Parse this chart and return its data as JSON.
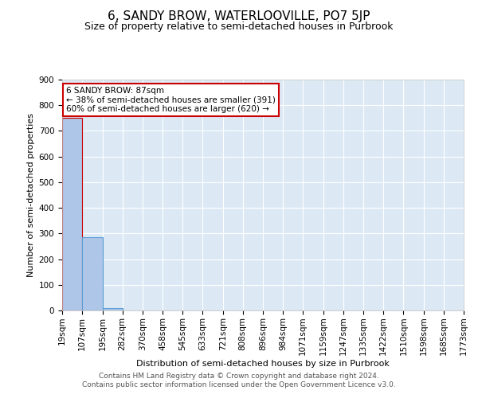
{
  "title": "6, SANDY BROW, WATERLOOVILLE, PO7 5JP",
  "subtitle": "Size of property relative to semi-detached houses in Purbrook",
  "xlabel": "Distribution of semi-detached houses by size in Purbrook",
  "ylabel": "Number of semi-detached properties",
  "footer_line1": "Contains HM Land Registry data © Crown copyright and database right 2024.",
  "footer_line2": "Contains public sector information licensed under the Open Government Licence v3.0.",
  "annotation_line1": "6 SANDY BROW: 87sqm",
  "annotation_line2": "← 38% of semi-detached houses are smaller (391)",
  "annotation_line3": "60% of semi-detached houses are larger (620) →",
  "bar_edges": [
    19,
    107,
    195,
    282,
    370,
    458,
    545,
    633,
    721,
    808,
    896,
    984,
    1071,
    1159,
    1247,
    1335,
    1422,
    1510,
    1598,
    1685,
    1773
  ],
  "bar_heights": [
    750,
    285,
    10,
    0,
    0,
    0,
    0,
    0,
    0,
    0,
    0,
    0,
    0,
    0,
    0,
    0,
    0,
    0,
    0,
    0
  ],
  "highlight_bar_index": 0,
  "bar_color": "#aec6e8",
  "bar_edge_color": "#5b9bd5",
  "highlight_bar_color": "#aec6e8",
  "highlight_bar_edge_color": "#cc0000",
  "background_color": "#dce9f5",
  "grid_color": "#ffffff",
  "annotation_box_facecolor": "#ffffff",
  "annotation_box_edgecolor": "#cc0000",
  "ylim": [
    0,
    900
  ],
  "yticks": [
    0,
    100,
    200,
    300,
    400,
    500,
    600,
    700,
    800,
    900
  ],
  "title_fontsize": 11,
  "subtitle_fontsize": 9,
  "axis_label_fontsize": 8,
  "tick_fontsize": 7.5,
  "annotation_fontsize": 7.5,
  "footer_fontsize": 6.5
}
